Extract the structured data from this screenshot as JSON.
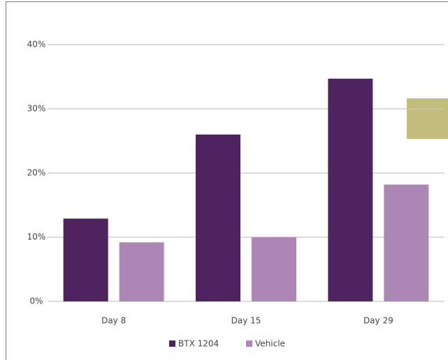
{
  "chart_data": {
    "type": "bar",
    "categories": [
      "Day 8",
      "Day 15",
      "Day 29"
    ],
    "series": [
      {
        "name": "BTX 1204",
        "color": "#4e2360",
        "values": [
          12.9,
          26,
          34.7
        ]
      },
      {
        "name": "Vehicle",
        "color": "#ac87b6",
        "values": [
          9.2,
          10,
          18.2
        ]
      }
    ],
    "ylim": [
      0,
      40
    ],
    "yticks": [
      {
        "value": 0,
        "label": "0%"
      },
      {
        "value": 10,
        "label": "10%"
      },
      {
        "value": 20,
        "label": "20%"
      },
      {
        "value": 30,
        "label": "30%"
      },
      {
        "value": 40,
        "label": "40%"
      }
    ],
    "grid": true,
    "legend": "bottom"
  }
}
